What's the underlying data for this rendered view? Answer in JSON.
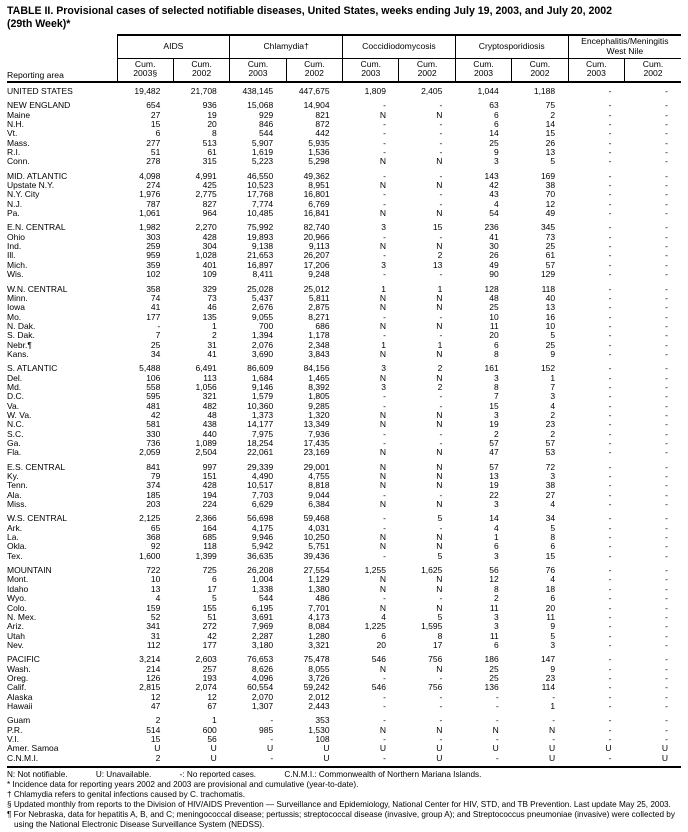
{
  "title": {
    "line1": "TABLE II. Provisional cases of selected notifiable diseases, United States, weeks ending July 19, 2003, and July 20, 2002",
    "line2": "(29th Week)*"
  },
  "header": {
    "reporting_area": "Reporting area",
    "groups": [
      {
        "label": "AIDS",
        "cols": [
          "Cum.\n2003§",
          "Cum.\n2002"
        ]
      },
      {
        "label": "Chlamydia†",
        "cols": [
          "Cum.\n2003",
          "Cum.\n2002"
        ]
      },
      {
        "label": "Coccidiodomycosis",
        "cols": [
          "Cum.\n2003",
          "Cum.\n2002"
        ]
      },
      {
        "label": "Cryptosporidiosis",
        "cols": [
          "Cum.\n2003",
          "Cum.\n2002"
        ]
      },
      {
        "label": "Encephalitis/Meningitis\nWest Nile",
        "cols": [
          "Cum.\n2003",
          "Cum.\n2002"
        ]
      }
    ]
  },
  "rows": [
    {
      "area": "UNITED STATES",
      "gap": false,
      "values": [
        "19,482",
        "21,708",
        "438,145",
        "447,675",
        "1,809",
        "2,405",
        "1,044",
        "1,188",
        "-",
        "-"
      ]
    },
    {
      "area": "NEW ENGLAND",
      "gap": true,
      "values": [
        "654",
        "936",
        "15,068",
        "14,904",
        "-",
        "-",
        "63",
        "75",
        "-",
        "-"
      ]
    },
    {
      "area": "Maine",
      "gap": false,
      "values": [
        "27",
        "19",
        "929",
        "821",
        "N",
        "N",
        "6",
        "2",
        "-",
        "-"
      ]
    },
    {
      "area": "N.H.",
      "gap": false,
      "values": [
        "15",
        "20",
        "846",
        "872",
        "-",
        "-",
        "6",
        "14",
        "-",
        "-"
      ]
    },
    {
      "area": "Vt.",
      "gap": false,
      "values": [
        "6",
        "8",
        "544",
        "442",
        "-",
        "-",
        "14",
        "15",
        "-",
        "-"
      ]
    },
    {
      "area": "Mass.",
      "gap": false,
      "values": [
        "277",
        "513",
        "5,907",
        "5,935",
        "-",
        "-",
        "25",
        "26",
        "-",
        "-"
      ]
    },
    {
      "area": "R.I.",
      "gap": false,
      "values": [
        "51",
        "61",
        "1,619",
        "1,536",
        "-",
        "-",
        "9",
        "13",
        "-",
        "-"
      ]
    },
    {
      "area": "Conn.",
      "gap": false,
      "values": [
        "278",
        "315",
        "5,223",
        "5,298",
        "N",
        "N",
        "3",
        "5",
        "-",
        "-"
      ]
    },
    {
      "area": "MID. ATLANTIC",
      "gap": true,
      "values": [
        "4,098",
        "4,991",
        "46,550",
        "49,362",
        "-",
        "-",
        "143",
        "169",
        "-",
        "-"
      ]
    },
    {
      "area": "Upstate N.Y.",
      "gap": false,
      "values": [
        "274",
        "425",
        "10,523",
        "8,951",
        "N",
        "N",
        "42",
        "38",
        "-",
        "-"
      ]
    },
    {
      "area": "N.Y. City",
      "gap": false,
      "values": [
        "1,976",
        "2,775",
        "17,768",
        "16,801",
        "-",
        "-",
        "43",
        "70",
        "-",
        "-"
      ]
    },
    {
      "area": "N.J.",
      "gap": false,
      "values": [
        "787",
        "827",
        "7,774",
        "6,769",
        "-",
        "-",
        "4",
        "12",
        "-",
        "-"
      ]
    },
    {
      "area": "Pa.",
      "gap": false,
      "values": [
        "1,061",
        "964",
        "10,485",
        "16,841",
        "N",
        "N",
        "54",
        "49",
        "-",
        "-"
      ]
    },
    {
      "area": "E.N. CENTRAL",
      "gap": true,
      "values": [
        "1,982",
        "2,270",
        "75,992",
        "82,740",
        "3",
        "15",
        "236",
        "345",
        "-",
        "-"
      ]
    },
    {
      "area": "Ohio",
      "gap": false,
      "values": [
        "303",
        "428",
        "19,893",
        "20,966",
        "-",
        "-",
        "41",
        "73",
        "-",
        "-"
      ]
    },
    {
      "area": "Ind.",
      "gap": false,
      "values": [
        "259",
        "304",
        "9,138",
        "9,113",
        "N",
        "N",
        "30",
        "25",
        "-",
        "-"
      ]
    },
    {
      "area": "Ill.",
      "gap": false,
      "values": [
        "959",
        "1,028",
        "21,653",
        "26,207",
        "-",
        "2",
        "26",
        "61",
        "-",
        "-"
      ]
    },
    {
      "area": "Mich.",
      "gap": false,
      "values": [
        "359",
        "401",
        "16,897",
        "17,206",
        "3",
        "13",
        "49",
        "57",
        "-",
        "-"
      ]
    },
    {
      "area": "Wis.",
      "gap": false,
      "values": [
        "102",
        "109",
        "8,411",
        "9,248",
        "-",
        "-",
        "90",
        "129",
        "-",
        "-"
      ]
    },
    {
      "area": "W.N. CENTRAL",
      "gap": true,
      "values": [
        "358",
        "329",
        "25,028",
        "25,012",
        "1",
        "1",
        "128",
        "118",
        "-",
        "-"
      ]
    },
    {
      "area": "Minn.",
      "gap": false,
      "values": [
        "74",
        "73",
        "5,437",
        "5,811",
        "N",
        "N",
        "48",
        "40",
        "-",
        "-"
      ]
    },
    {
      "area": "Iowa",
      "gap": false,
      "values": [
        "41",
        "46",
        "2,676",
        "2,875",
        "N",
        "N",
        "25",
        "13",
        "-",
        "-"
      ]
    },
    {
      "area": "Mo.",
      "gap": false,
      "values": [
        "177",
        "135",
        "9,055",
        "8,271",
        "-",
        "-",
        "10",
        "16",
        "-",
        "-"
      ]
    },
    {
      "area": "N. Dak.",
      "gap": false,
      "values": [
        "-",
        "1",
        "700",
        "686",
        "N",
        "N",
        "11",
        "10",
        "-",
        "-"
      ]
    },
    {
      "area": "S. Dak.",
      "gap": false,
      "values": [
        "7",
        "2",
        "1,394",
        "1,178",
        "-",
        "-",
        "20",
        "5",
        "-",
        "-"
      ]
    },
    {
      "area": "Nebr.¶",
      "gap": false,
      "values": [
        "25",
        "31",
        "2,076",
        "2,348",
        "1",
        "1",
        "6",
        "25",
        "-",
        "-"
      ]
    },
    {
      "area": "Kans.",
      "gap": false,
      "values": [
        "34",
        "41",
        "3,690",
        "3,843",
        "N",
        "N",
        "8",
        "9",
        "-",
        "-"
      ]
    },
    {
      "area": "S. ATLANTIC",
      "gap": true,
      "values": [
        "5,488",
        "6,491",
        "86,609",
        "84,156",
        "3",
        "2",
        "161",
        "152",
        "-",
        "-"
      ]
    },
    {
      "area": "Del.",
      "gap": false,
      "values": [
        "106",
        "113",
        "1,684",
        "1,465",
        "N",
        "N",
        "3",
        "1",
        "-",
        "-"
      ]
    },
    {
      "area": "Md.",
      "gap": false,
      "values": [
        "558",
        "1,056",
        "9,146",
        "8,392",
        "3",
        "2",
        "8",
        "7",
        "-",
        "-"
      ]
    },
    {
      "area": "D.C.",
      "gap": false,
      "values": [
        "595",
        "321",
        "1,579",
        "1,805",
        "-",
        "-",
        "7",
        "3",
        "-",
        "-"
      ]
    },
    {
      "area": "Va.",
      "gap": false,
      "values": [
        "481",
        "482",
        "10,360",
        "9,285",
        "-",
        "-",
        "15",
        "4",
        "-",
        "-"
      ]
    },
    {
      "area": "W. Va.",
      "gap": false,
      "values": [
        "42",
        "48",
        "1,373",
        "1,320",
        "N",
        "N",
        "3",
        "2",
        "-",
        "-"
      ]
    },
    {
      "area": "N.C.",
      "gap": false,
      "values": [
        "581",
        "438",
        "14,177",
        "13,349",
        "N",
        "N",
        "19",
        "23",
        "-",
        "-"
      ]
    },
    {
      "area": "S.C.",
      "gap": false,
      "values": [
        "330",
        "440",
        "7,975",
        "7,936",
        "-",
        "-",
        "2",
        "2",
        "-",
        "-"
      ]
    },
    {
      "area": "Ga.",
      "gap": false,
      "values": [
        "736",
        "1,089",
        "18,254",
        "17,435",
        "-",
        "-",
        "57",
        "57",
        "-",
        "-"
      ]
    },
    {
      "area": "Fla.",
      "gap": false,
      "values": [
        "2,059",
        "2,504",
        "22,061",
        "23,169",
        "N",
        "N",
        "47",
        "53",
        "-",
        "-"
      ]
    },
    {
      "area": "E.S. CENTRAL",
      "gap": true,
      "values": [
        "841",
        "997",
        "29,339",
        "29,001",
        "N",
        "N",
        "57",
        "72",
        "-",
        "-"
      ]
    },
    {
      "area": "Ky.",
      "gap": false,
      "values": [
        "79",
        "151",
        "4,490",
        "4,755",
        "N",
        "N",
        "13",
        "3",
        "-",
        "-"
      ]
    },
    {
      "area": "Tenn.",
      "gap": false,
      "values": [
        "374",
        "428",
        "10,517",
        "8,818",
        "N",
        "N",
        "19",
        "38",
        "-",
        "-"
      ]
    },
    {
      "area": "Ala.",
      "gap": false,
      "values": [
        "185",
        "194",
        "7,703",
        "9,044",
        "-",
        "-",
        "22",
        "27",
        "-",
        "-"
      ]
    },
    {
      "area": "Miss.",
      "gap": false,
      "values": [
        "203",
        "224",
        "6,629",
        "6,384",
        "N",
        "N",
        "3",
        "4",
        "-",
        "-"
      ]
    },
    {
      "area": "W.S. CENTRAL",
      "gap": true,
      "values": [
        "2,125",
        "2,366",
        "56,698",
        "59,468",
        "-",
        "5",
        "14",
        "34",
        "-",
        "-"
      ]
    },
    {
      "area": "Ark.",
      "gap": false,
      "values": [
        "65",
        "164",
        "4,175",
        "4,031",
        "-",
        "-",
        "4",
        "5",
        "-",
        "-"
      ]
    },
    {
      "area": "La.",
      "gap": false,
      "values": [
        "368",
        "685",
        "9,946",
        "10,250",
        "N",
        "N",
        "1",
        "8",
        "-",
        "-"
      ]
    },
    {
      "area": "Okla.",
      "gap": false,
      "values": [
        "92",
        "118",
        "5,942",
        "5,751",
        "N",
        "N",
        "6",
        "6",
        "-",
        "-"
      ]
    },
    {
      "area": "Tex.",
      "gap": false,
      "values": [
        "1,600",
        "1,399",
        "36,635",
        "39,436",
        "-",
        "5",
        "3",
        "15",
        "-",
        "-"
      ]
    },
    {
      "area": "MOUNTAIN",
      "gap": true,
      "values": [
        "722",
        "725",
        "26,208",
        "27,554",
        "1,255",
        "1,625",
        "56",
        "76",
        "-",
        "-"
      ]
    },
    {
      "area": "Mont.",
      "gap": false,
      "values": [
        "10",
        "6",
        "1,004",
        "1,129",
        "N",
        "N",
        "12",
        "4",
        "-",
        "-"
      ]
    },
    {
      "area": "Idaho",
      "gap": false,
      "values": [
        "13",
        "17",
        "1,338",
        "1,380",
        "N",
        "N",
        "8",
        "18",
        "-",
        "-"
      ]
    },
    {
      "area": "Wyo.",
      "gap": false,
      "values": [
        "4",
        "5",
        "544",
        "486",
        "-",
        "-",
        "2",
        "6",
        "-",
        "-"
      ]
    },
    {
      "area": "Colo.",
      "gap": false,
      "values": [
        "159",
        "155",
        "6,195",
        "7,701",
        "N",
        "N",
        "11",
        "20",
        "-",
        "-"
      ]
    },
    {
      "area": "N. Mex.",
      "gap": false,
      "values": [
        "52",
        "51",
        "3,691",
        "4,173",
        "4",
        "5",
        "3",
        "11",
        "-",
        "-"
      ]
    },
    {
      "area": "Ariz.",
      "gap": false,
      "values": [
        "341",
        "272",
        "7,969",
        "8,084",
        "1,225",
        "1,595",
        "3",
        "9",
        "-",
        "-"
      ]
    },
    {
      "area": "Utah",
      "gap": false,
      "values": [
        "31",
        "42",
        "2,287",
        "1,280",
        "6",
        "8",
        "11",
        "5",
        "-",
        "-"
      ]
    },
    {
      "area": "Nev.",
      "gap": false,
      "values": [
        "112",
        "177",
        "3,180",
        "3,321",
        "20",
        "17",
        "6",
        "3",
        "-",
        "-"
      ]
    },
    {
      "area": "PACIFIC",
      "gap": true,
      "values": [
        "3,214",
        "2,603",
        "76,653",
        "75,478",
        "546",
        "756",
        "186",
        "147",
        "-",
        "-"
      ]
    },
    {
      "area": "Wash.",
      "gap": false,
      "values": [
        "214",
        "257",
        "8,626",
        "8,055",
        "N",
        "N",
        "25",
        "9",
        "-",
        "-"
      ]
    },
    {
      "area": "Oreg.",
      "gap": false,
      "values": [
        "126",
        "193",
        "4,096",
        "3,726",
        "-",
        "-",
        "25",
        "23",
        "-",
        "-"
      ]
    },
    {
      "area": "Calif.",
      "gap": false,
      "values": [
        "2,815",
        "2,074",
        "60,554",
        "59,242",
        "546",
        "756",
        "136",
        "114",
        "-",
        "-"
      ]
    },
    {
      "area": "Alaska",
      "gap": false,
      "values": [
        "12",
        "12",
        "2,070",
        "2,012",
        "-",
        "-",
        "-",
        "-",
        "-",
        "-"
      ]
    },
    {
      "area": "Hawaii",
      "gap": false,
      "values": [
        "47",
        "67",
        "1,307",
        "2,443",
        "-",
        "-",
        "-",
        "1",
        "-",
        "-"
      ]
    },
    {
      "area": "Guam",
      "gap": true,
      "values": [
        "2",
        "1",
        "-",
        "353",
        "-",
        "-",
        "-",
        "-",
        "-",
        "-"
      ]
    },
    {
      "area": "P.R.",
      "gap": false,
      "values": [
        "514",
        "600",
        "985",
        "1,530",
        "N",
        "N",
        "N",
        "N",
        "-",
        "-"
      ]
    },
    {
      "area": "V.I.",
      "gap": false,
      "values": [
        "15",
        "56",
        "-",
        "108",
        "-",
        "-",
        "-",
        "-",
        "-",
        "-"
      ]
    },
    {
      "area": "Amer. Samoa",
      "gap": false,
      "values": [
        "U",
        "U",
        "U",
        "U",
        "U",
        "U",
        "U",
        "U",
        "U",
        "U"
      ]
    },
    {
      "area": "C.N.M.I.",
      "gap": false,
      "values": [
        "2",
        "U",
        "-",
        "U",
        "-",
        "U",
        "-",
        "U",
        "-",
        "U"
      ]
    }
  ],
  "legend": [
    "N: Not notifiable.",
    "U: Unavailable.",
    "-: No reported cases.",
    "C.N.M.I.: Commonwealth of Northern Mariana Islands."
  ],
  "footnotes": [
    "* Incidence data for reporting years 2002 and 2003 are provisional and cumulative (year-to-date).",
    "† Chlamydia refers to genital infections caused by C. trachomatis.",
    "§ Updated monthly from reports to the Division of HIV/AIDS Prevention — Surveillance and Epidemiology, National Center for HIV, STD, and TB Prevention. Last update May 25, 2003.",
    "¶ For Nebraska, data for hepatitis A, B, and C; meningococcal disease; pertussis; streptococcal disease (invasive, group A); and Streptococcus pneumoniae (invasive) were collected by using the National Electronic Disease Surveillance System (NEDSS)."
  ]
}
